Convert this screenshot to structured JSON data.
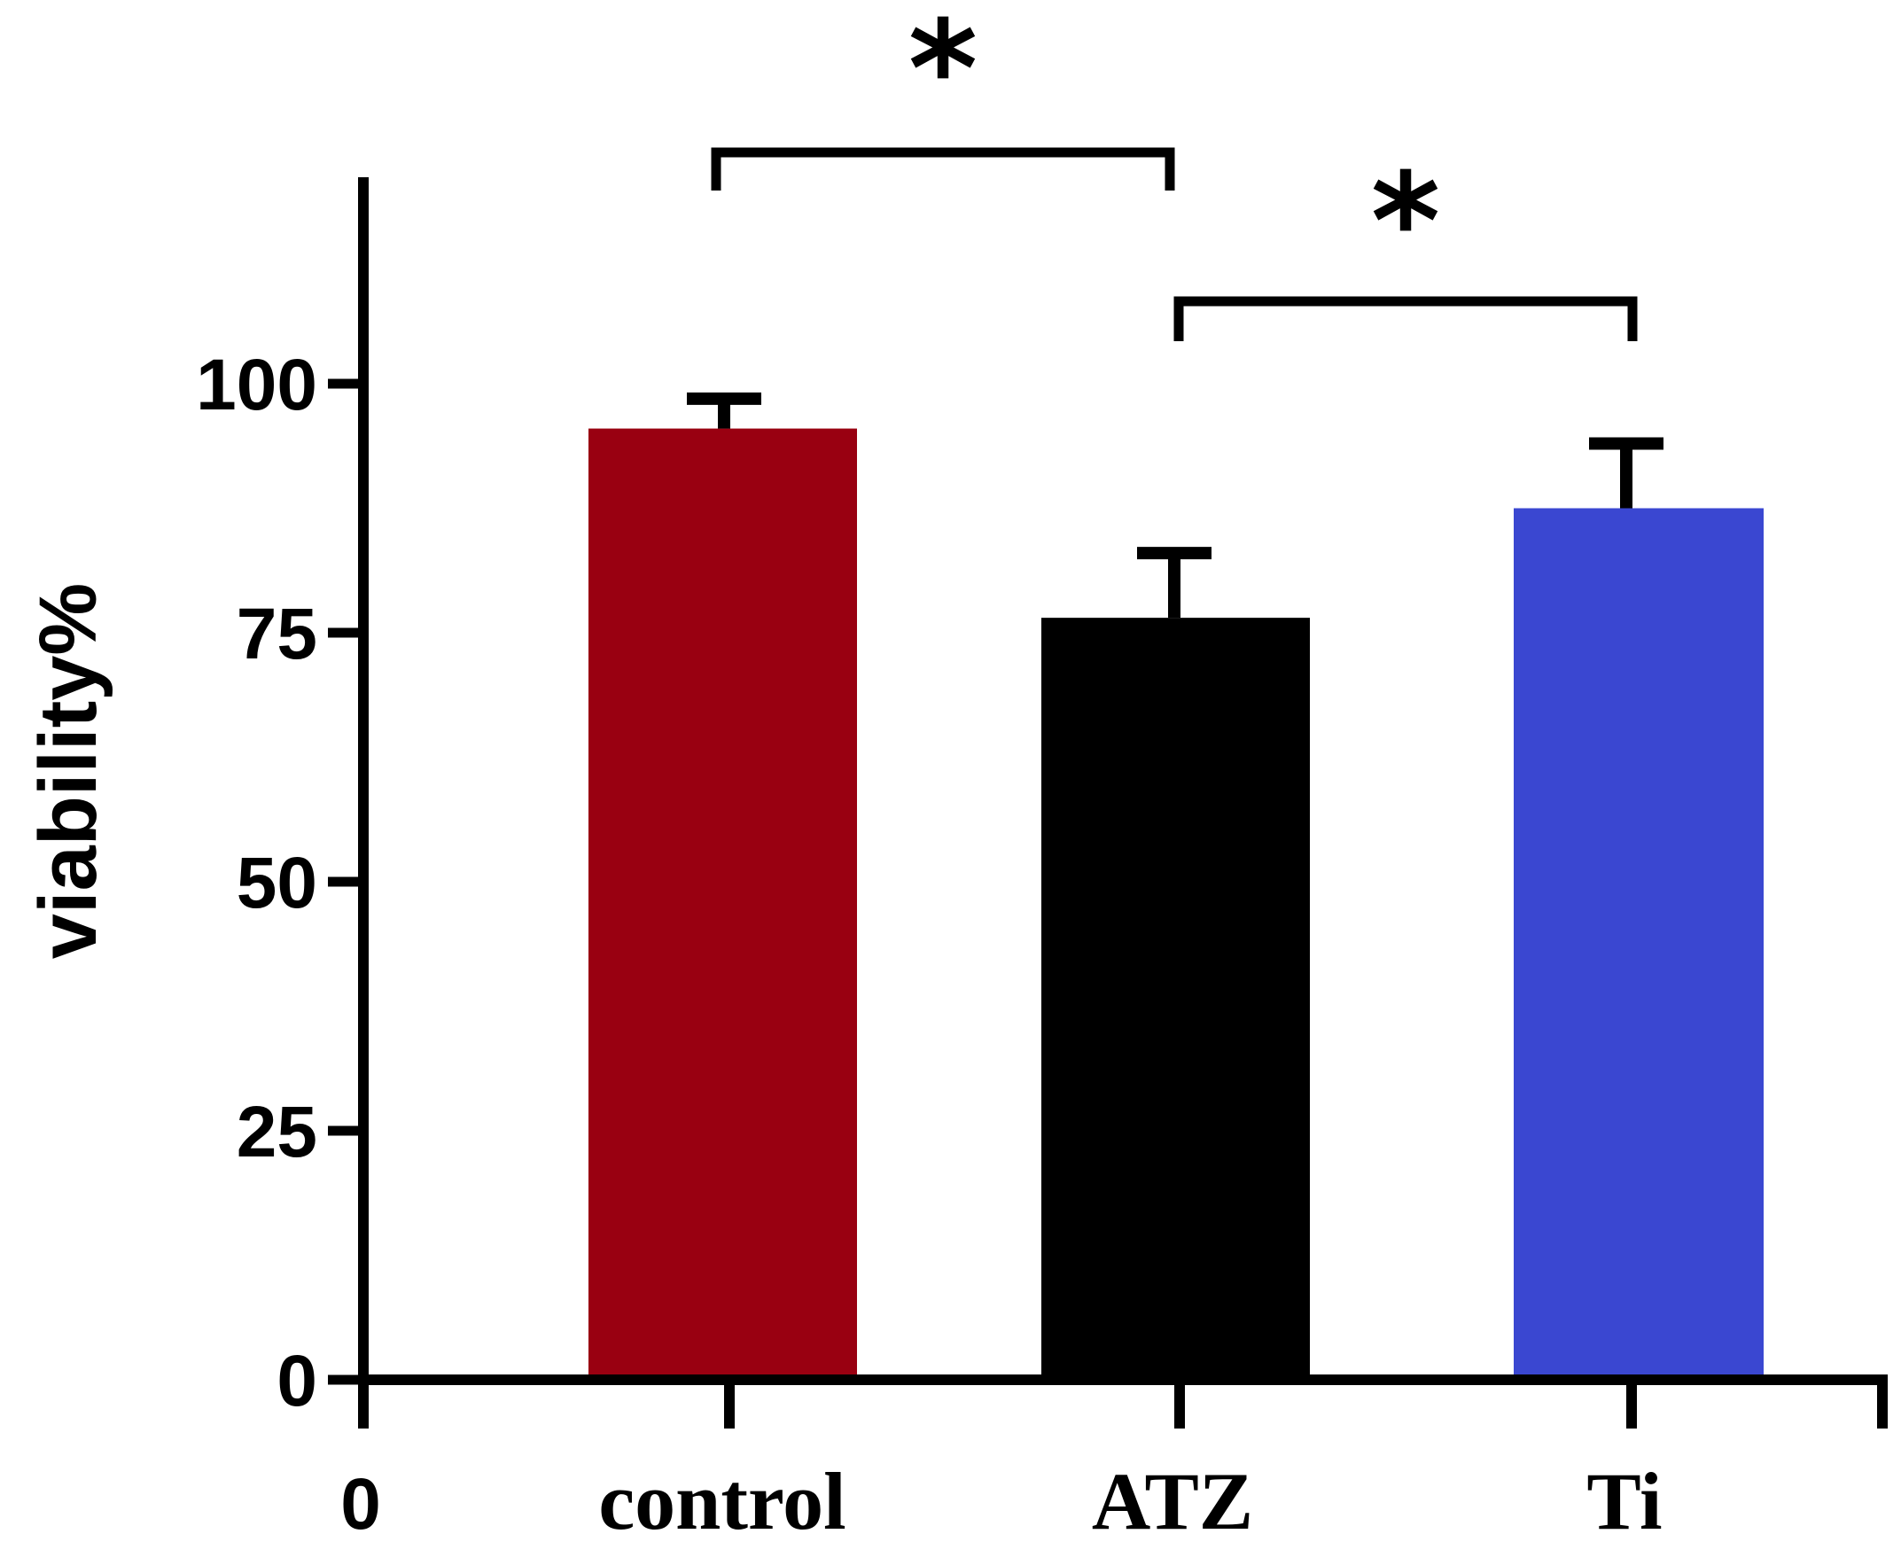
{
  "chart_data": {
    "type": "bar",
    "title": "",
    "xlabel": "",
    "ylabel": "viability%",
    "x_origin_label": "0",
    "categories": [
      "control",
      "ATZ",
      "Ti"
    ],
    "values": [
      95.5,
      76.5,
      87.5
    ],
    "errors": [
      3.0,
      6.5,
      6.5
    ],
    "colors": [
      "#990011",
      "#000000",
      "#3A47D1"
    ],
    "ylim": [
      0,
      120
    ],
    "yticks": [
      0,
      25,
      50,
      75,
      100
    ],
    "ytick_labels": [
      "0",
      "25",
      "50",
      "75",
      "100"
    ],
    "significance": [
      {
        "pair": [
          0,
          1
        ],
        "label": "*"
      },
      {
        "pair": [
          1,
          2
        ],
        "label": "*"
      }
    ],
    "grid": false,
    "legend": "none"
  }
}
